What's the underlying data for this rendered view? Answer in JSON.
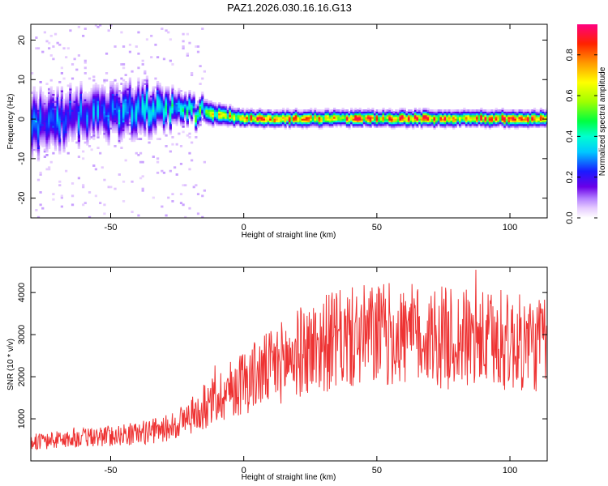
{
  "title": "PAZ1.2026.030.16.16.G13",
  "chart_data": [
    {
      "type": "heatmap",
      "title": "PAZ1.2026.030.16.16.G13",
      "xlabel": "Height of straight line (km)",
      "ylabel": "Frequency (Hz)",
      "xlim": [
        -80,
        114
      ],
      "ylim": [
        -25,
        24
      ],
      "x_ticks": [
        -50,
        0,
        50,
        100
      ],
      "x_tick_labels": [
        "-50",
        "0",
        "50",
        "100"
      ],
      "y_ticks": [
        -20,
        -10,
        0,
        10,
        20
      ],
      "y_tick_labels": [
        "-20",
        "-10",
        "0",
        "10",
        "20"
      ],
      "colorbar": {
        "label": "Normalized spectral amplitude",
        "range": [
          0,
          0.95
        ],
        "ticks": [
          0.0,
          0.2,
          0.4,
          0.6,
          0.8
        ],
        "tick_labels": [
          "0.0",
          "0.2",
          "0.4",
          "0.6",
          "0.8"
        ],
        "colormap": "rainbow (white-lavender-purple-blue-cyan-green-yellow-orange-red-magenta)"
      },
      "description_points": [
        {
          "height_km": -80,
          "freq_center_hz": -1.5,
          "freq_spread_hz": 6,
          "amplitude": 0.3
        },
        {
          "height_km": -60,
          "freq_center_hz": 1,
          "freq_spread_hz": 5,
          "amplitude": 0.3
        },
        {
          "height_km": -40,
          "freq_center_hz": 2.5,
          "freq_spread_hz": 5,
          "amplitude": 0.35
        },
        {
          "height_km": -20,
          "freq_center_hz": 2,
          "freq_spread_hz": 2.5,
          "amplitude": 0.45
        },
        {
          "height_km": 0,
          "freq_center_hz": 0,
          "freq_spread_hz": 1.5,
          "amplitude": 0.7
        },
        {
          "height_km": 50,
          "freq_center_hz": 0,
          "freq_spread_hz": 1.5,
          "amplitude": 0.75
        },
        {
          "height_km": 100,
          "freq_center_hz": 0,
          "freq_spread_hz": 1.5,
          "amplitude": 0.75
        }
      ]
    },
    {
      "type": "line",
      "xlabel": "Height of straight line (km)",
      "ylabel": "SNR (10 * v/v)",
      "xlim": [
        -80,
        114
      ],
      "ylim": [
        0,
        4600
      ],
      "x_ticks": [
        -50,
        0,
        50,
        100
      ],
      "x_tick_labels": [
        "-50",
        "0",
        "50",
        "100"
      ],
      "y_ticks": [
        1000,
        2000,
        3000,
        4000
      ],
      "y_tick_labels": [
        "1000",
        "2000",
        "3000",
        "4000"
      ],
      "series_color": "#ee3333",
      "trend_x": [
        -80,
        -60,
        -40,
        -30,
        -20,
        -10,
        0,
        10,
        20,
        30,
        50,
        70,
        90,
        114
      ],
      "trend_y": [
        450,
        550,
        650,
        750,
        1050,
        1500,
        1900,
        2200,
        2550,
        2800,
        3000,
        2950,
        2850,
        2750
      ]
    }
  ]
}
